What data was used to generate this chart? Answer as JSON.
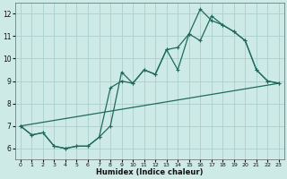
{
  "background_color": "#ceeae6",
  "grid_color": "#aacfcb",
  "line_color": "#1e6b5e",
  "xlabel": "Humidex (Indice chaleur)",
  "xlim": [
    -0.5,
    23.5
  ],
  "ylim": [
    5.5,
    12.5
  ],
  "yticks": [
    6,
    7,
    8,
    9,
    10,
    11,
    12
  ],
  "xticks": [
    0,
    1,
    2,
    3,
    4,
    5,
    6,
    7,
    8,
    9,
    10,
    11,
    12,
    13,
    14,
    15,
    16,
    17,
    18,
    19,
    20,
    21,
    22,
    23
  ],
  "line1_x": [
    0,
    1,
    2,
    3,
    4,
    5,
    6,
    7,
    8,
    9,
    10,
    11,
    12,
    13,
    14,
    15,
    16,
    17,
    18,
    19,
    20,
    21,
    22,
    23
  ],
  "line1_y": [
    7.0,
    6.6,
    6.7,
    6.1,
    6.0,
    6.1,
    6.1,
    6.5,
    7.0,
    9.4,
    8.9,
    9.5,
    9.3,
    10.4,
    9.5,
    11.1,
    10.8,
    11.9,
    11.5,
    11.2,
    10.8,
    9.5,
    9.0,
    8.9
  ],
  "line2_x": [
    0,
    1,
    2,
    3,
    4,
    5,
    6,
    7,
    8,
    9,
    10,
    11,
    12,
    13,
    14,
    15,
    16,
    17,
    18,
    19,
    20,
    21,
    22,
    23
  ],
  "line2_y": [
    7.0,
    6.6,
    6.7,
    6.1,
    6.0,
    6.1,
    6.1,
    6.5,
    8.7,
    9.0,
    8.9,
    9.5,
    9.3,
    10.4,
    10.5,
    11.1,
    12.2,
    11.7,
    11.5,
    11.2,
    10.8,
    9.5,
    9.0,
    8.9
  ],
  "line3_x": [
    0,
    23
  ],
  "line3_y": [
    7.0,
    8.9
  ]
}
